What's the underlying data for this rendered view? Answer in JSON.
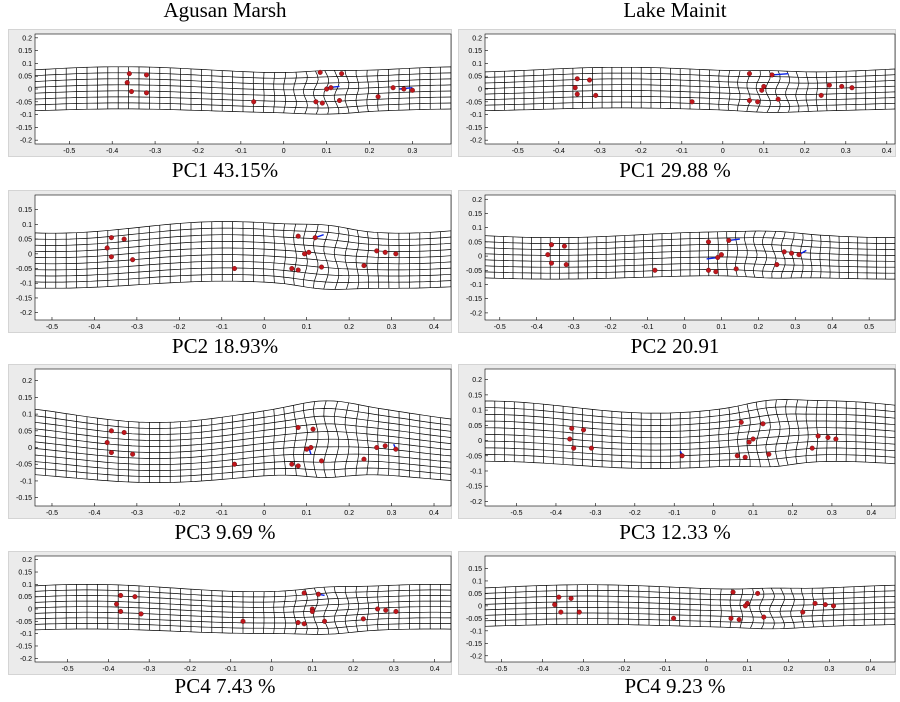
{
  "figure": {
    "columns": [
      "Agusan Marsh",
      "Lake Mainit"
    ]
  },
  "colors": {
    "grid": "#000000",
    "landmark": "#c0161c",
    "vector": "#0a23e6",
    "panel_bg": "#ebebeb",
    "plot_bg": "#ffffff"
  },
  "chart_data": [
    {
      "type": "scatter",
      "population": "Agusan Marsh",
      "caption": "PC1 43.15%",
      "xlim": [
        -0.58,
        0.39
      ],
      "ylim": [
        -0.215,
        0.215
      ],
      "x_ticks": [
        "-0.5",
        "-0.4",
        "-0.3",
        "-0.2",
        "-0.1",
        "0",
        "0.1",
        "0.2",
        "0.3"
      ],
      "y_ticks": [
        "0.2",
        "0.15",
        "0.1",
        "0.05",
        "0",
        "-0.05",
        "-0.1",
        "-0.15",
        "-0.2"
      ],
      "grid": {
        "x0": -0.58,
        "x1": 0.39,
        "y0": -0.085,
        "y1": 0.075,
        "cols": 40,
        "rows": 7,
        "warp_amp": 0.012
      },
      "landmarks": [
        [
          -0.36,
          0.06
        ],
        [
          -0.32,
          0.055
        ],
        [
          -0.365,
          0.025
        ],
        [
          -0.355,
          -0.01
        ],
        [
          -0.32,
          -0.015
        ],
        [
          -0.07,
          -0.05
        ],
        [
          0.085,
          0.065
        ],
        [
          0.135,
          0.06
        ],
        [
          0.1,
          0.0
        ],
        [
          0.11,
          0.005
        ],
        [
          0.075,
          -0.05
        ],
        [
          0.09,
          -0.055
        ],
        [
          0.13,
          -0.045
        ],
        [
          0.22,
          -0.03
        ],
        [
          0.255,
          0.005
        ],
        [
          0.28,
          0.0
        ],
        [
          0.3,
          -0.005
        ]
      ],
      "vectors": [
        [
          0.1,
          0.005,
          0.13,
          0.01
        ],
        [
          0.27,
          0.0,
          0.3,
          0.005
        ]
      ]
    },
    {
      "type": "scatter",
      "population": "Lake Mainit",
      "caption": "PC1 29.88 %",
      "xlim": [
        -0.58,
        0.42
      ],
      "ylim": [
        -0.215,
        0.215
      ],
      "x_ticks": [
        "-0.5",
        "-0.4",
        "-0.3",
        "-0.2",
        "-0.1",
        "0",
        "0.1",
        "0.2",
        "0.3",
        "0.4"
      ],
      "y_ticks": [
        "0.2",
        "0.15",
        "0.1",
        "0.05",
        "0",
        "-0.05",
        "-0.1",
        "-0.15",
        "-0.2"
      ],
      "grid": {
        "x0": -0.58,
        "x1": 0.42,
        "y0": -0.08,
        "y1": 0.075,
        "cols": 42,
        "rows": 7,
        "warp_amp": 0.01
      },
      "landmarks": [
        [
          -0.355,
          0.04
        ],
        [
          -0.325,
          0.035
        ],
        [
          -0.36,
          0.005
        ],
        [
          -0.355,
          -0.02
        ],
        [
          -0.31,
          -0.025
        ],
        [
          -0.075,
          -0.05
        ],
        [
          0.065,
          0.06
        ],
        [
          0.12,
          0.055
        ],
        [
          0.1,
          0.01
        ],
        [
          0.095,
          -0.005
        ],
        [
          0.065,
          -0.045
        ],
        [
          0.085,
          -0.05
        ],
        [
          0.135,
          -0.04
        ],
        [
          0.24,
          -0.025
        ],
        [
          0.26,
          0.015
        ],
        [
          0.29,
          0.01
        ],
        [
          0.315,
          0.005
        ]
      ],
      "vectors": [
        [
          0.12,
          0.055,
          0.16,
          0.06
        ]
      ]
    },
    {
      "type": "scatter",
      "population": "Agusan Marsh",
      "caption": "PC2 18.93%",
      "xlim": [
        -0.54,
        0.44
      ],
      "ylim": [
        -0.225,
        0.2
      ],
      "x_ticks": [
        "-0.5",
        "-0.4",
        "-0.3",
        "-0.2",
        "-0.1",
        "0",
        "0.1",
        "0.2",
        "0.3",
        "0.4"
      ],
      "y_ticks": [
        "0.15",
        "0.1",
        "0.05",
        "0",
        "-0.05",
        "-0.1",
        "-0.15",
        "-0.2"
      ],
      "grid": {
        "x0": -0.54,
        "x1": 0.44,
        "y0": -0.105,
        "y1": 0.09,
        "cols": 40,
        "rows": 9,
        "warp_amp": 0.02
      },
      "landmarks": [
        [
          -0.36,
          0.055
        ],
        [
          -0.33,
          0.05
        ],
        [
          -0.37,
          0.02
        ],
        [
          -0.36,
          -0.01
        ],
        [
          -0.31,
          -0.02
        ],
        [
          -0.07,
          -0.05
        ],
        [
          0.08,
          0.06
        ],
        [
          0.12,
          0.055
        ],
        [
          0.105,
          0.005
        ],
        [
          0.095,
          0.0
        ],
        [
          0.065,
          -0.05
        ],
        [
          0.08,
          -0.055
        ],
        [
          0.135,
          -0.045
        ],
        [
          0.235,
          -0.04
        ],
        [
          0.265,
          0.01
        ],
        [
          0.285,
          0.005
        ],
        [
          0.31,
          0.0
        ]
      ],
      "vectors": [
        [
          0.12,
          0.055,
          0.14,
          0.065
        ]
      ]
    },
    {
      "type": "scatter",
      "population": "Lake Mainit",
      "caption": "PC2 20.91",
      "xlim": [
        -0.54,
        0.57
      ],
      "ylim": [
        -0.225,
        0.215
      ],
      "x_ticks": [
        "-0.5",
        "-0.4",
        "-0.3",
        "-0.2",
        "-0.1",
        "0",
        "0.1",
        "0.2",
        "0.3",
        "0.4",
        "0.5"
      ],
      "y_ticks": [
        "0.2",
        "0.15",
        "0.1",
        "0.05",
        "0",
        "-0.05",
        "-0.1",
        "-0.15",
        "-0.2"
      ],
      "grid": {
        "x0": -0.54,
        "x1": 0.57,
        "y0": -0.075,
        "y1": 0.075,
        "cols": 44,
        "rows": 7,
        "warp_amp": 0.01
      },
      "landmarks": [
        [
          -0.36,
          0.04
        ],
        [
          -0.325,
          0.035
        ],
        [
          -0.37,
          0.005
        ],
        [
          -0.36,
          -0.025
        ],
        [
          -0.32,
          -0.03
        ],
        [
          -0.08,
          -0.05
        ],
        [
          0.065,
          0.05
        ],
        [
          0.12,
          0.055
        ],
        [
          0.1,
          0.005
        ],
        [
          0.09,
          -0.005
        ],
        [
          0.065,
          -0.05
        ],
        [
          0.085,
          -0.055
        ],
        [
          0.14,
          -0.045
        ],
        [
          0.25,
          -0.03
        ],
        [
          0.27,
          0.015
        ],
        [
          0.29,
          0.01
        ],
        [
          0.31,
          0.005
        ]
      ],
      "vectors": [
        [
          0.09,
          -0.005,
          0.06,
          -0.01
        ],
        [
          0.12,
          0.055,
          0.15,
          0.06
        ],
        [
          0.31,
          0.005,
          0.33,
          0.02
        ]
      ]
    },
    {
      "type": "scatter",
      "population": "Agusan Marsh",
      "caption": "PC3 9.69 %",
      "xlim": [
        -0.54,
        0.44
      ],
      "ylim": [
        -0.175,
        0.235
      ],
      "x_ticks": [
        "-0.5",
        "-0.4",
        "-0.3",
        "-0.2",
        "-0.1",
        "0",
        "0.1",
        "0.2",
        "0.3",
        "0.4"
      ],
      "y_ticks": [
        "0.2",
        "0.15",
        "0.1",
        "0.05",
        "0",
        "-0.05",
        "-0.1",
        "-0.15"
      ],
      "grid": {
        "x0": -0.54,
        "x1": 0.44,
        "y0": -0.09,
        "y1": 0.1,
        "cols": 40,
        "rows": 10,
        "warp_amp": 0.025
      },
      "landmarks": [
        [
          -0.36,
          0.05
        ],
        [
          -0.33,
          0.045
        ],
        [
          -0.37,
          0.015
        ],
        [
          -0.36,
          -0.015
        ],
        [
          -0.31,
          -0.02
        ],
        [
          -0.07,
          -0.05
        ],
        [
          0.08,
          0.06
        ],
        [
          0.115,
          0.055
        ],
        [
          0.11,
          0.0
        ],
        [
          0.1,
          -0.005
        ],
        [
          0.065,
          -0.05
        ],
        [
          0.08,
          -0.055
        ],
        [
          0.135,
          -0.04
        ],
        [
          0.235,
          -0.035
        ],
        [
          0.265,
          0.0
        ],
        [
          0.285,
          0.005
        ],
        [
          0.31,
          -0.005
        ]
      ],
      "vectors": [
        [
          0.105,
          0.0,
          0.11,
          -0.02
        ],
        [
          0.31,
          -0.005,
          0.305,
          0.01
        ]
      ]
    },
    {
      "type": "scatter",
      "population": "Lake Mainit",
      "caption": "PC3 12.33 %",
      "xlim": [
        -0.58,
        0.46
      ],
      "ylim": [
        -0.215,
        0.235
      ],
      "x_ticks": [
        "-0.5",
        "-0.4",
        "-0.3",
        "-0.2",
        "-0.1",
        "0",
        "0.1",
        "0.2",
        "0.3",
        "0.4"
      ],
      "y_ticks": [
        "0.2",
        "0.15",
        "0.1",
        "0.05",
        "0",
        "-0.05",
        "-0.1",
        "-0.15",
        "-0.2"
      ],
      "grid": {
        "x0": -0.58,
        "x1": 0.46,
        "y0": -0.08,
        "y1": 0.11,
        "cols": 42,
        "rows": 9,
        "warp_amp": 0.02
      },
      "landmarks": [
        [
          -0.36,
          0.04
        ],
        [
          -0.33,
          0.035
        ],
        [
          -0.365,
          0.005
        ],
        [
          -0.355,
          -0.025
        ],
        [
          -0.31,
          -0.025
        ],
        [
          -0.08,
          -0.05
        ],
        [
          0.07,
          0.06
        ],
        [
          0.125,
          0.055
        ],
        [
          0.1,
          0.005
        ],
        [
          0.09,
          -0.005
        ],
        [
          0.06,
          -0.05
        ],
        [
          0.08,
          -0.055
        ],
        [
          0.14,
          -0.045
        ],
        [
          0.25,
          -0.025
        ],
        [
          0.265,
          0.015
        ],
        [
          0.29,
          0.01
        ],
        [
          0.31,
          0.005
        ]
      ],
      "vectors": [
        [
          -0.08,
          -0.045,
          -0.085,
          -0.035
        ]
      ]
    },
    {
      "type": "scatter",
      "population": "Agusan Marsh",
      "caption": "PC4 7.43 %",
      "xlim": [
        -0.58,
        0.44
      ],
      "ylim": [
        -0.215,
        0.215
      ],
      "x_ticks": [
        "-0.5",
        "-0.4",
        "-0.3",
        "-0.2",
        "-0.1",
        "0",
        "0.1",
        "0.2",
        "0.3",
        "0.4"
      ],
      "y_ticks": [
        "0.2",
        "0.15",
        "0.1",
        "0.05",
        "0",
        "-0.05",
        "-0.1",
        "-0.15",
        "-0.2"
      ],
      "grid": {
        "x0": -0.58,
        "x1": 0.44,
        "y0": -0.09,
        "y1": 0.085,
        "cols": 40,
        "rows": 8,
        "warp_amp": 0.015
      },
      "landmarks": [
        [
          -0.37,
          0.055
        ],
        [
          -0.335,
          0.05
        ],
        [
          -0.38,
          0.02
        ],
        [
          -0.37,
          -0.01
        ],
        [
          -0.32,
          -0.02
        ],
        [
          -0.07,
          -0.05
        ],
        [
          0.08,
          0.065
        ],
        [
          0.115,
          0.06
        ],
        [
          0.1,
          0.0
        ],
        [
          0.1,
          -0.01
        ],
        [
          0.065,
          -0.055
        ],
        [
          0.08,
          -0.06
        ],
        [
          0.13,
          -0.05
        ],
        [
          0.225,
          -0.04
        ],
        [
          0.26,
          0.0
        ],
        [
          0.28,
          -0.005
        ],
        [
          0.305,
          -0.01
        ]
      ],
      "vectors": [
        [
          0.115,
          0.06,
          0.13,
          0.055
        ]
      ]
    },
    {
      "type": "scatter",
      "population": "Lake Mainit",
      "caption": "PC4 9.23 %",
      "xlim": [
        -0.54,
        0.46
      ],
      "ylim": [
        -0.225,
        0.2
      ],
      "x_ticks": [
        "-0.5",
        "-0.4",
        "-0.3",
        "-0.2",
        "-0.1",
        "0",
        "0.1",
        "0.2",
        "0.3",
        "0.4"
      ],
      "y_ticks": [
        "0.15",
        "0.1",
        "0.05",
        "0",
        "-0.05",
        "-0.1",
        "-0.15",
        "-0.2"
      ],
      "grid": {
        "x0": -0.54,
        "x1": 0.46,
        "y0": -0.08,
        "y1": 0.075,
        "cols": 40,
        "rows": 7,
        "warp_amp": 0.01
      },
      "landmarks": [
        [
          -0.36,
          0.035
        ],
        [
          -0.33,
          0.03
        ],
        [
          -0.37,
          0.005
        ],
        [
          -0.355,
          -0.025
        ],
        [
          -0.31,
          -0.025
        ],
        [
          -0.08,
          -0.05
        ],
        [
          0.065,
          0.055
        ],
        [
          0.125,
          0.05
        ],
        [
          0.1,
          0.01
        ],
        [
          0.095,
          0.0
        ],
        [
          0.06,
          -0.05
        ],
        [
          0.08,
          -0.055
        ],
        [
          0.14,
          -0.045
        ],
        [
          0.235,
          -0.025
        ],
        [
          0.265,
          0.01
        ],
        [
          0.29,
          0.005
        ],
        [
          0.31,
          0.0
        ]
      ],
      "vectors": [
        [
          0.1,
          0.01,
          0.1,
          0.02
        ]
      ]
    }
  ]
}
